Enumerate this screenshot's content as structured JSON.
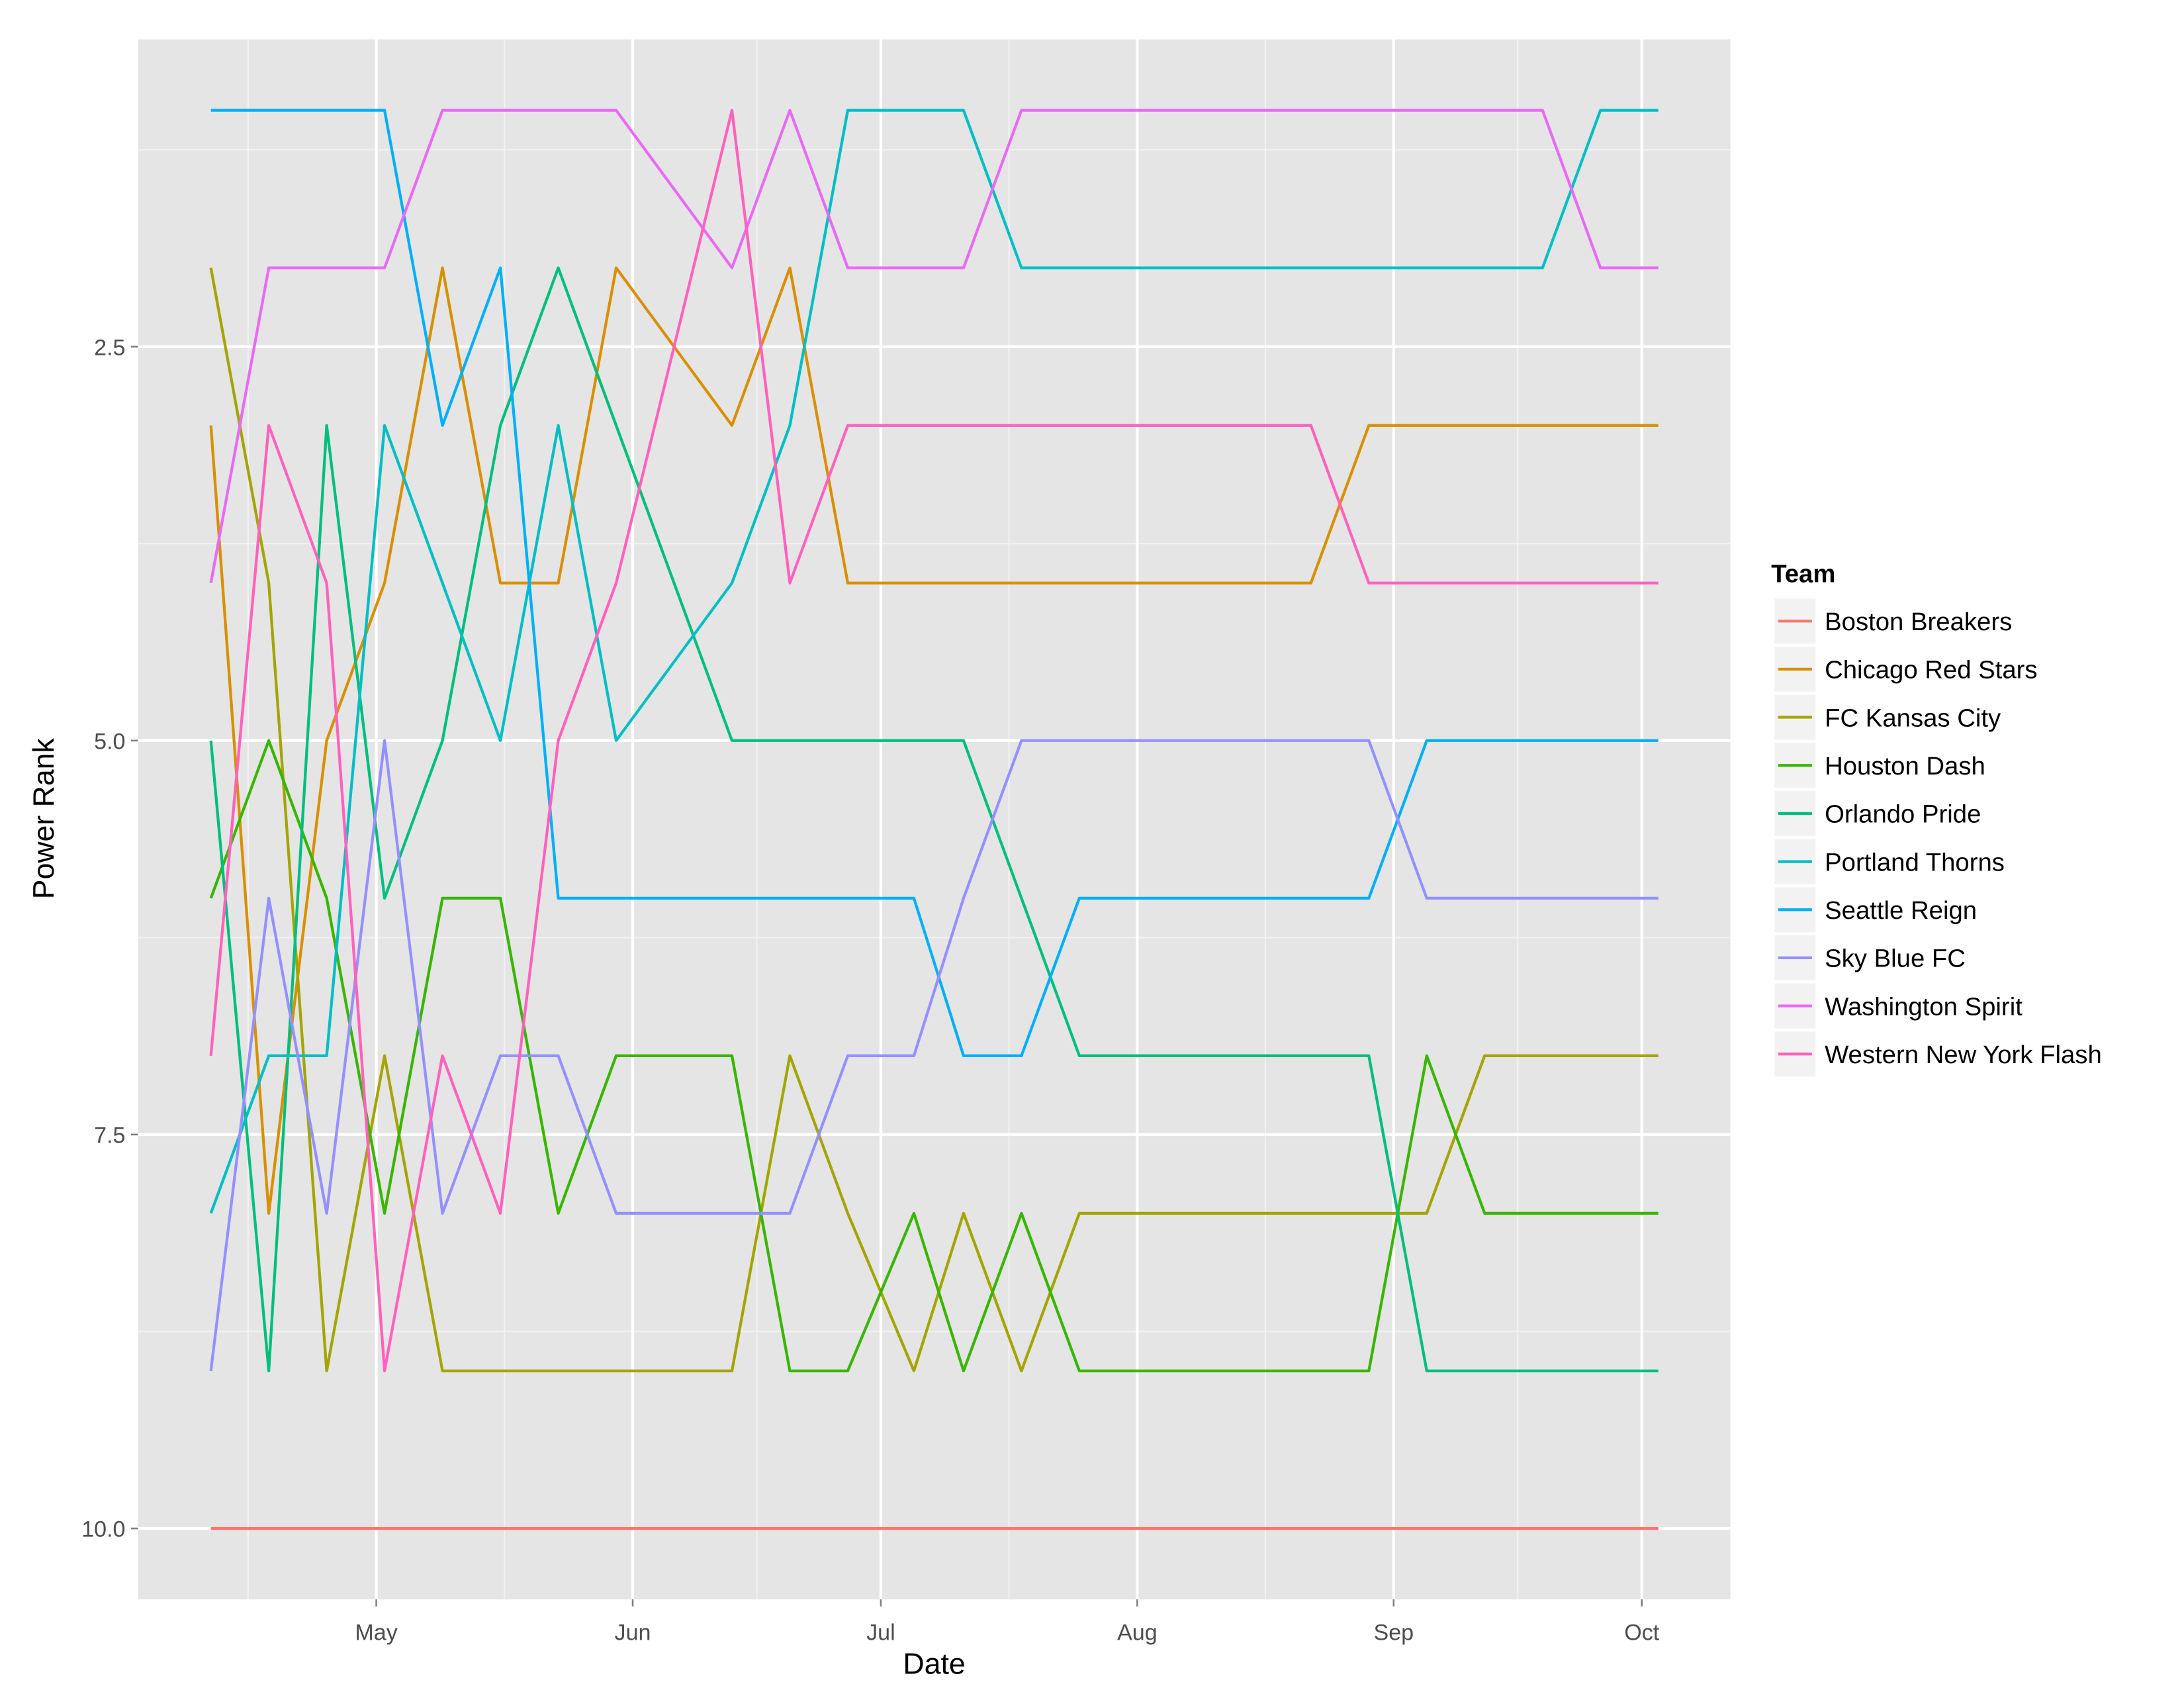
{
  "chart_data": {
    "type": "line",
    "x_label": "Date",
    "y_label": "Power Rank",
    "legend_title": "Team",
    "legend_position": "right",
    "grid": true,
    "x": [
      101,
      108,
      115,
      122,
      129,
      136,
      143,
      150,
      164,
      171,
      178,
      186,
      192,
      199,
      206,
      234,
      241,
      248,
      255,
      262,
      269,
      276
    ],
    "xlim": [
      92.2,
      284.7
    ],
    "xticks": [
      {
        "value": 121,
        "label": "May"
      },
      {
        "value": 152,
        "label": "Jun"
      },
      {
        "value": 182,
        "label": "Jul"
      },
      {
        "value": 213,
        "label": "Aug"
      },
      {
        "value": 244,
        "label": "Sep"
      },
      {
        "value": 274,
        "label": "Oct"
      }
    ],
    "ylim": [
      10.45,
      0.55
    ],
    "yticks": [
      {
        "value": 2.5,
        "label": "2.5"
      },
      {
        "value": 5,
        "label": "5.0"
      },
      {
        "value": 7.5,
        "label": "7.5"
      },
      {
        "value": 10,
        "label": "10.0"
      }
    ],
    "series": [
      {
        "name": "Boston Breakers",
        "color": "#F8766D",
        "values": [
          10,
          10,
          10,
          10,
          10,
          10,
          10,
          10,
          10,
          10,
          10,
          10,
          10,
          10,
          10,
          10,
          10,
          10,
          10,
          10,
          10,
          10
        ]
      },
      {
        "name": "Chicago Red Stars",
        "color": "#D89000",
        "values": [
          3,
          8,
          5,
          4,
          2,
          4,
          4,
          2,
          3,
          2,
          4,
          4,
          4,
          4,
          4,
          4,
          3,
          3,
          3,
          3,
          3,
          3
        ]
      },
      {
        "name": "FC Kansas City",
        "color": "#A3A500",
        "values": [
          2,
          4,
          9,
          7,
          9,
          9,
          9,
          9,
          9,
          7,
          8,
          9,
          8,
          9,
          8,
          8,
          8,
          8,
          7,
          7,
          7,
          7
        ]
      },
      {
        "name": "Houston Dash",
        "color": "#39B600",
        "values": [
          6,
          5,
          6,
          8,
          6,
          6,
          8,
          7,
          7,
          9,
          9,
          8,
          9,
          8,
          9,
          9,
          9,
          7,
          8,
          8,
          8,
          8
        ]
      },
      {
        "name": "Orlando Pride",
        "color": "#00BF7D",
        "values": [
          5,
          9,
          3,
          6,
          5,
          3,
          2,
          3,
          5,
          5,
          5,
          5,
          5,
          6,
          7,
          7,
          7,
          9,
          9,
          9,
          9,
          9
        ]
      },
      {
        "name": "Portland Thorns",
        "color": "#00BFC4",
        "values": [
          8,
          7,
          7,
          3,
          4,
          5,
          3,
          5,
          4,
          3,
          1,
          1,
          1,
          2,
          2,
          2,
          2,
          2,
          2,
          2,
          1,
          1
        ]
      },
      {
        "name": "Seattle Reign",
        "color": "#00B0F6",
        "values": [
          1,
          1,
          1,
          1,
          3,
          2,
          6,
          6,
          6,
          6,
          6,
          6,
          7,
          7,
          6,
          6,
          6,
          5,
          5,
          5,
          5,
          5
        ]
      },
      {
        "name": "Sky Blue FC",
        "color": "#9590FF",
        "values": [
          9,
          6,
          8,
          5,
          8,
          7,
          7,
          8,
          8,
          8,
          7,
          7,
          6,
          5,
          5,
          5,
          5,
          6,
          6,
          6,
          6,
          6
        ]
      },
      {
        "name": "Washington Spirit",
        "color": "#E76BF3",
        "values": [
          4,
          2,
          2,
          2,
          1,
          1,
          1,
          1,
          2,
          1,
          2,
          2,
          2,
          1,
          1,
          1,
          1,
          1,
          1,
          1,
          2,
          2
        ]
      },
      {
        "name": "Western New York Flash",
        "color": "#FF62BC",
        "values": [
          7,
          3,
          4,
          9,
          7,
          8,
          5,
          4,
          1,
          4,
          3,
          3,
          3,
          3,
          3,
          3,
          4,
          4,
          4,
          4,
          4,
          4
        ]
      }
    ]
  }
}
